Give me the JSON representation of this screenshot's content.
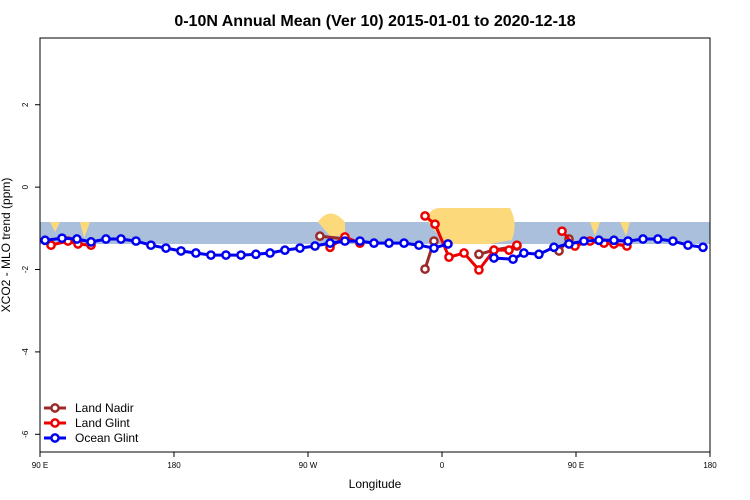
{
  "chart_data": {
    "type": "line",
    "title": "0-10N Annual Mean (Ver 10)   2015-01-01 to 2020-12-18",
    "x_label": "Longitude",
    "y_label": "XCO2 - MLO trend (ppm)",
    "xlim": [
      90,
      540
    ],
    "ylim": [
      -6.43,
      3.62
    ],
    "xticks": [
      {
        "value": 90,
        "label": "90 E"
      },
      {
        "value": 180,
        "label": "180"
      },
      {
        "value": 270,
        "label": "90 W"
      },
      {
        "value": 360,
        "label": "0"
      },
      {
        "value": 450,
        "label": "90 E"
      },
      {
        "value": 540,
        "label": "180"
      }
    ],
    "yticks": [
      -6,
      -4,
      -2,
      0,
      2
    ],
    "legend": "bottom-left",
    "series": [
      {
        "name": "Land Nadir",
        "color": "#9b2a2a",
        "x": [
          278,
          294.8,
          null,
          348.6,
          354.6,
          null,
          384.8,
          394.9,
          410.3,
          null,
          438.6,
          445.3
        ],
        "values": [
          -1.19,
          -1.26,
          null,
          -1.99,
          -1.31,
          null,
          -1.63,
          -1.53,
          -1.43,
          null,
          -1.55,
          -1.26
        ]
      },
      {
        "name": "Land Glint",
        "color": "#ee0000",
        "x": [
          97.4,
          108.8,
          115.5,
          124.3,
          null,
          284.8,
          294.8,
          304.9,
          null,
          348.6,
          355.3,
          364.7,
          374.8,
          384.8,
          394.9,
          405,
          410.3,
          null,
          440.6,
          449.3,
          459.4,
          468.8,
          475.5,
          484.2
        ],
        "values": [
          -1.41,
          -1.31,
          -1.38,
          -1.41,
          null,
          -1.46,
          -1.21,
          -1.36,
          null,
          -0.7,
          -0.9,
          -1.7,
          -1.6,
          -2.01,
          -1.53,
          -1.53,
          -1.41,
          null,
          -1.07,
          -1.43,
          -1.31,
          -1.36,
          -1.38,
          -1.43
        ]
      },
      {
        "name": "Ocean Glint",
        "color": "#0000ee",
        "x": [
          93.4,
          104.8,
          114.8,
          124.3,
          134.3,
          144.4,
          154.5,
          164.5,
          174.6,
          184.7,
          194.7,
          204.8,
          214.9,
          225,
          235,
          244.5,
          254.5,
          264.6,
          274.7,
          284.8,
          294.8,
          304.9,
          314.3,
          324.4,
          334.5,
          344.5,
          354.6,
          364,
          null,
          394.9,
          407.7,
          415,
          425.1,
          435.2,
          445.3,
          455.3,
          465.4,
          475.5,
          484.9,
          495,
          505,
          515.1,
          525.2,
          535.3
        ],
        "values": [
          -1.29,
          -1.24,
          -1.26,
          -1.33,
          -1.26,
          -1.26,
          -1.31,
          -1.41,
          -1.48,
          -1.55,
          -1.6,
          -1.65,
          -1.65,
          -1.65,
          -1.63,
          -1.6,
          -1.53,
          -1.48,
          -1.43,
          -1.36,
          -1.31,
          -1.31,
          -1.36,
          -1.36,
          -1.36,
          -1.41,
          -1.48,
          -1.38,
          null,
          -1.72,
          -1.75,
          -1.6,
          -1.63,
          -1.46,
          -1.38,
          -1.31,
          -1.29,
          -1.29,
          -1.31,
          -1.26,
          -1.26,
          -1.31,
          -1.41,
          -1.46
        ]
      }
    ]
  }
}
